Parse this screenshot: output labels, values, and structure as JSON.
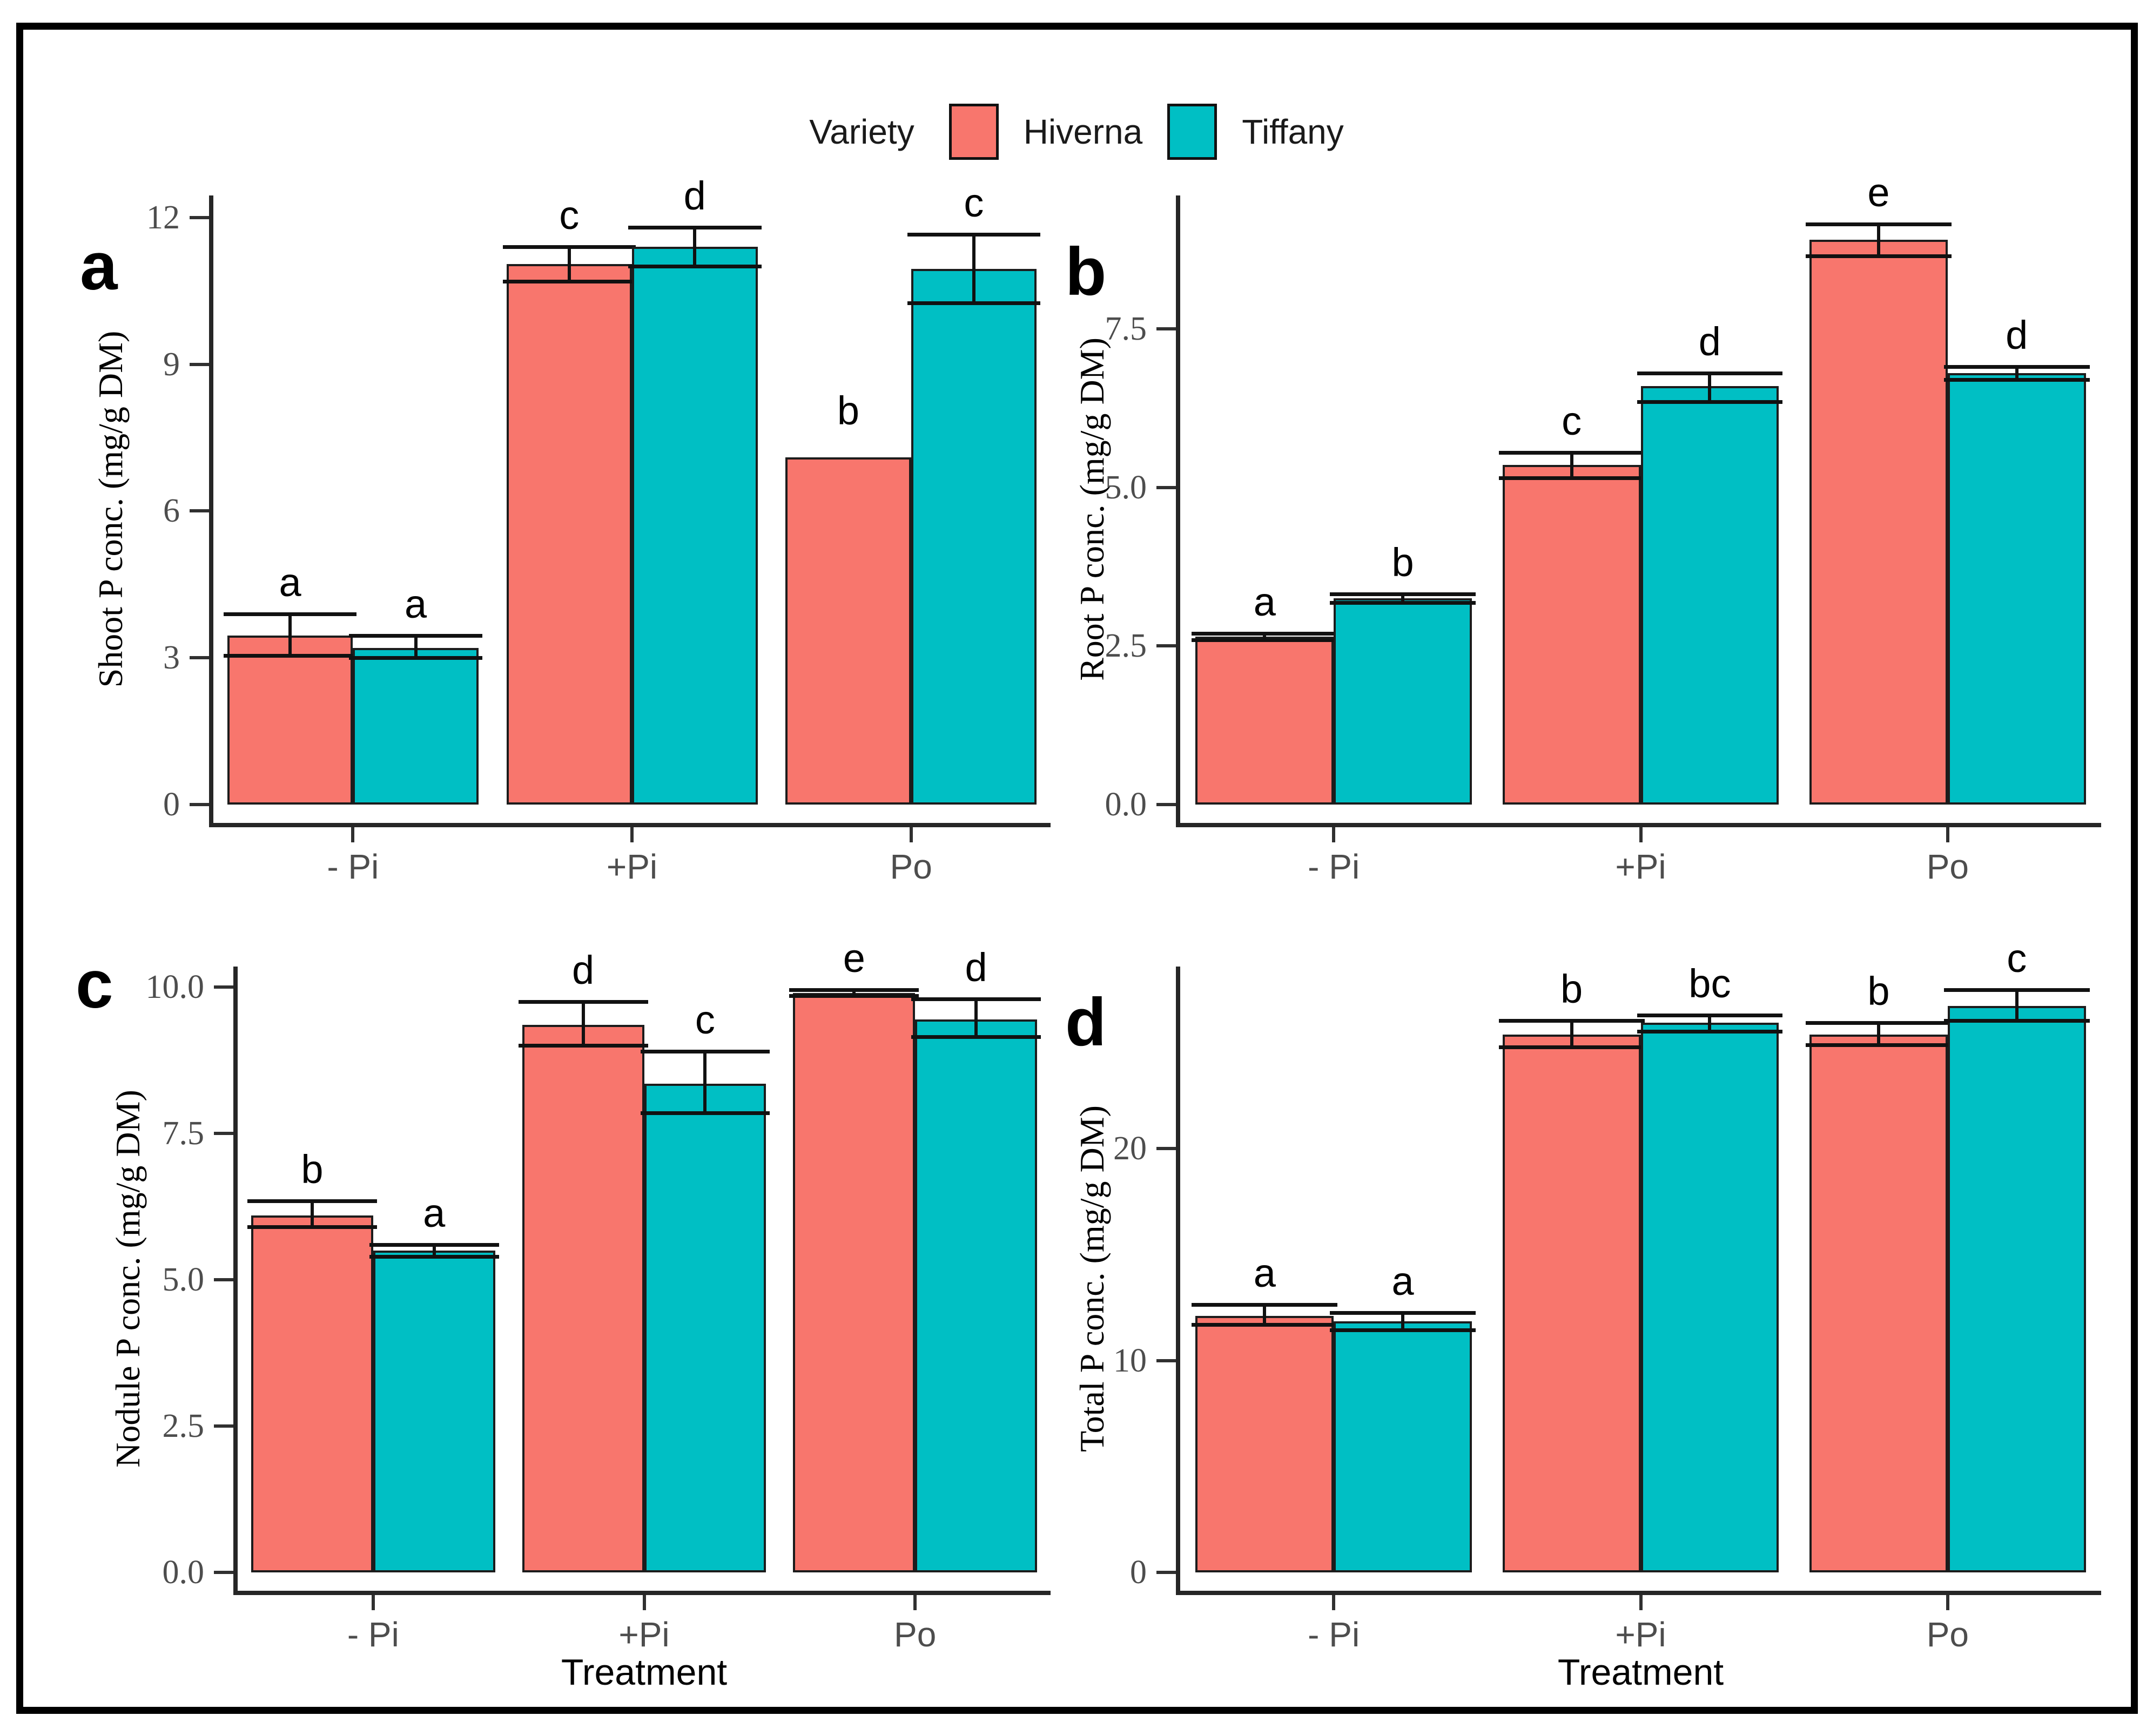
{
  "legend": {
    "title": "Variety",
    "entries": [
      {
        "label": "Hiverna",
        "color": "#F8766D"
      },
      {
        "label": "Tiffany",
        "color": "#00BFC4"
      }
    ],
    "position": "top"
  },
  "colors": {
    "hiverna": "#F8766D",
    "tiffany": "#00BFC4",
    "bar_border": "#1c1c1c",
    "axis_line": "#262626",
    "tick_label": "#4d4d4d",
    "figure_border": "#000000"
  },
  "chart_data": [
    {
      "panel": "a",
      "type": "bar",
      "ylabel": "Shoot P conc. (mg/g DM)",
      "xlabel": "",
      "categories": [
        "- Pi",
        "+Pi",
        "Po"
      ],
      "ytick_labels": [
        "0",
        "3",
        "6",
        "9",
        "12"
      ],
      "ytick_values": [
        0,
        3,
        6,
        9,
        12
      ],
      "ylim": [
        0,
        12.45
      ],
      "grid": "off",
      "series": [
        {
          "name": "Hiverna",
          "values": [
            3.45,
            11.05,
            7.1
          ],
          "err_low": [
            3.05,
            10.7,
            7.1
          ],
          "err_high": [
            3.9,
            11.4,
            7.1
          ],
          "sig_letters": [
            "a",
            "c",
            "b"
          ]
        },
        {
          "name": "Tiffany",
          "values": [
            3.2,
            11.4,
            10.95
          ],
          "err_low": [
            3.0,
            11.0,
            10.25
          ],
          "err_high": [
            3.45,
            11.8,
            11.65
          ],
          "sig_letters": [
            "a",
            "d",
            "c"
          ]
        }
      ]
    },
    {
      "panel": "b",
      "type": "bar",
      "ylabel": "Root P conc. (mg/g DM)",
      "xlabel": "",
      "categories": [
        "- Pi",
        "+Pi",
        "Po"
      ],
      "ytick_labels": [
        "0.0",
        "2.5",
        "5.0",
        "7.5"
      ],
      "ytick_values": [
        0,
        2.5,
        5,
        7.5
      ],
      "ylim": [
        0,
        9.6
      ],
      "grid": "off",
      "series": [
        {
          "name": "Hiverna",
          "values": [
            2.65,
            5.35,
            8.9
          ],
          "err_low": [
            2.6,
            5.15,
            8.65
          ],
          "err_high": [
            2.7,
            5.55,
            9.15
          ],
          "sig_letters": [
            "a",
            "c",
            "e"
          ]
        },
        {
          "name": "Tiffany",
          "values": [
            3.25,
            6.6,
            6.8
          ],
          "err_low": [
            3.18,
            6.35,
            6.7
          ],
          "err_high": [
            3.32,
            6.8,
            6.9
          ],
          "sig_letters": [
            "b",
            "d",
            "d"
          ]
        }
      ]
    },
    {
      "panel": "c",
      "type": "bar",
      "ylabel": "Nodule P conc. (mg/g DM)",
      "xlabel": "Treatment",
      "categories": [
        "- Pi",
        "+Pi",
        "Po"
      ],
      "ytick_labels": [
        "0.0",
        "2.5",
        "5.0",
        "7.5",
        "10.0"
      ],
      "ytick_values": [
        0,
        2.5,
        5,
        7.5,
        10
      ],
      "ylim": [
        0,
        10.35
      ],
      "grid": "off",
      "series": [
        {
          "name": "Hiverna",
          "values": [
            6.1,
            9.35,
            9.9
          ],
          "err_low": [
            5.9,
            9.0,
            9.85
          ],
          "err_high": [
            6.35,
            9.75,
            9.95
          ],
          "sig_letters": [
            "b",
            "d",
            "e"
          ]
        },
        {
          "name": "Tiffany",
          "values": [
            5.5,
            8.35,
            9.45
          ],
          "err_low": [
            5.4,
            7.85,
            9.15
          ],
          "err_high": [
            5.6,
            8.9,
            9.8
          ],
          "sig_letters": [
            "a",
            "c",
            "d"
          ]
        }
      ]
    },
    {
      "panel": "d",
      "type": "bar",
      "ylabel": "Total P conc. (mg/g DM)",
      "xlabel": "Treatment",
      "categories": [
        "- Pi",
        "+Pi",
        "Po"
      ],
      "ytick_labels": [
        "0",
        "10",
        "20"
      ],
      "ytick_values": [
        0,
        10,
        20
      ],
      "ylim": [
        0,
        28.6
      ],
      "grid": "off",
      "series": [
        {
          "name": "Hiverna",
          "values": [
            12.1,
            25.4,
            25.4
          ],
          "err_low": [
            11.7,
            24.8,
            24.9
          ],
          "err_high": [
            12.65,
            26.05,
            25.95
          ],
          "sig_letters": [
            "a",
            "b",
            "b"
          ]
        },
        {
          "name": "Tiffany",
          "values": [
            11.85,
            25.95,
            26.75
          ],
          "err_low": [
            11.45,
            25.55,
            26.05
          ],
          "err_high": [
            12.25,
            26.3,
            27.5
          ],
          "sig_letters": [
            "a",
            "bc",
            "c"
          ]
        }
      ]
    }
  ]
}
